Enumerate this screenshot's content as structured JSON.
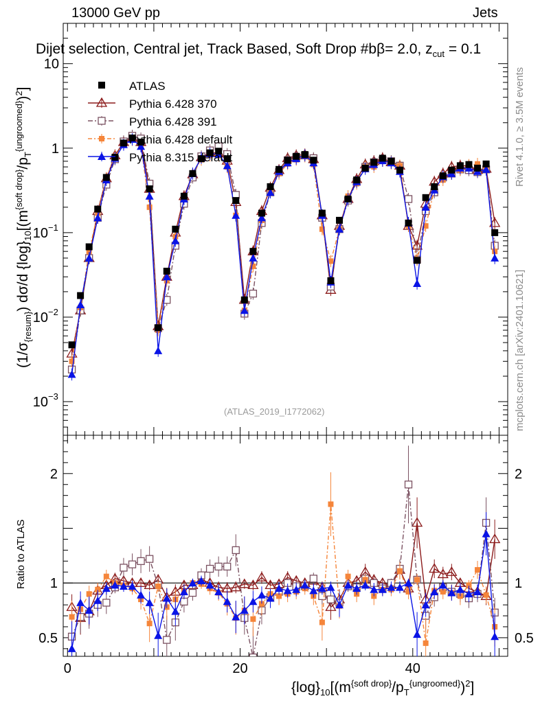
{
  "header": {
    "left": "13000 GeV pp",
    "right": "Jets",
    "selection": "Dijet selection, Central jet, Track Based, Soft Drop #b",
    "beta_text": "= 2.0, z",
    "zcut_sub": "cut",
    "zcut_val": " = 0.1"
  },
  "side_labels": {
    "rivet": "Rivet 4.1.0, ≥ 3.5M events",
    "mcplots": "mcplots.cern.ch [arXiv:2401.10621]"
  },
  "watermark": "(ATLAS_2019_I1772062)",
  "axis_text": {
    "y_main": "(1/σ{resum}) dσ/d {log}10[(m{soft drop}/pT{ungroomed})2]",
    "y_ratio": "Ratio to ATLAS",
    "x": "{log}10[(m{soft drop}/pT{ungroomed})2]"
  },
  "colors": {
    "atlas": "#000000",
    "p370": "#8b1a1a",
    "p391": "#7a5060",
    "pdef": "#f5853a",
    "p8": "#0a14e6"
  },
  "chart_data": {
    "type": "line",
    "title": "Dijet selection, Central jet, Track Based, Soft Drop #b = 2.0, zcut = 0.1",
    "xlabel": "{log}10[(m{soft drop}/pT{ungroomed})2]",
    "ylabel": "(1/σ{resum}) dσ/d {log}10[(m{soft drop}/pT{ungroomed})2]",
    "xlim": [
      -0.5,
      51
    ],
    "ylim_main": [
      0.0004,
      30
    ],
    "yscale_main": "log",
    "ylim_ratio": [
      0.33,
      2.35
    ],
    "x_ticks": [
      0,
      20,
      40
    ],
    "y_ticks_main": [
      {
        "value": 0.001,
        "label": "10",
        "exp": "−3"
      },
      {
        "value": 0.01,
        "label": "10",
        "exp": "−2"
      },
      {
        "value": 0.1,
        "label": "10",
        "exp": "−1"
      },
      {
        "value": 1,
        "label": "1",
        "exp": ""
      },
      {
        "value": 10,
        "label": "10",
        "exp": ""
      }
    ],
    "y_ticks_ratio": [
      0.5,
      1,
      2
    ],
    "legend": [
      {
        "key": "atlas",
        "label": "ATLAS",
        "marker": "square-filled",
        "dash": ""
      },
      {
        "key": "p370",
        "label": "Pythia 6.428 370",
        "marker": "triangle-open",
        "dash": ""
      },
      {
        "key": "p391",
        "label": "Pythia 6.428 391",
        "marker": "square-open",
        "dash": "7,3,2,3"
      },
      {
        "key": "pdef",
        "label": "Pythia 6.428 default",
        "marker": "square-small",
        "dash": "6,3,2,3"
      },
      {
        "key": "p8",
        "label": "Pythia 8.315 default",
        "marker": "triangle-filled",
        "dash": ""
      }
    ],
    "x": [
      0.5,
      1.5,
      2.5,
      3.5,
      4.5,
      5.5,
      6.5,
      7.5,
      8.5,
      9.5,
      10.5,
      11.5,
      12.5,
      13.5,
      14.5,
      15.5,
      16.5,
      17.5,
      18.5,
      19.5,
      20.5,
      21.5,
      22.5,
      23.5,
      24.5,
      25.5,
      26.5,
      27.5,
      28.5,
      29.5,
      30.5,
      31.5,
      32.5,
      33.5,
      34.5,
      35.5,
      36.5,
      37.5,
      38.5,
      39.5,
      40.5,
      41.5,
      42.5,
      43.5,
      44.5,
      45.5,
      46.5,
      47.5,
      48.5,
      49.5
    ],
    "atlas": [
      0.0047,
      0.018,
      0.068,
      0.19,
      0.45,
      0.78,
      1.15,
      1.32,
      1.18,
      0.33,
      0.0075,
      0.035,
      0.11,
      0.27,
      0.5,
      0.75,
      0.88,
      0.92,
      0.75,
      0.24,
      0.016,
      0.06,
      0.17,
      0.35,
      0.56,
      0.72,
      0.8,
      0.84,
      0.72,
      0.17,
      0.027,
      0.14,
      0.25,
      0.42,
      0.58,
      0.68,
      0.76,
      0.7,
      0.55,
      0.13,
      0.047,
      0.26,
      0.35,
      0.47,
      0.55,
      0.62,
      0.64,
      0.58,
      0.65,
      0.1
    ],
    "series": [
      {
        "key": "p370",
        "name": "Pythia 6.428 370",
        "values": [
          0.0037,
          0.012,
          0.05,
          0.18,
          0.44,
          0.82,
          1.18,
          1.32,
          1.18,
          0.33,
          0.0078,
          0.03,
          0.1,
          0.27,
          0.49,
          0.78,
          0.88,
          0.88,
          0.71,
          0.23,
          0.016,
          0.06,
          0.18,
          0.34,
          0.55,
          0.76,
          0.82,
          0.84,
          0.74,
          0.16,
          0.021,
          0.12,
          0.25,
          0.43,
          0.64,
          0.7,
          0.76,
          0.68,
          0.62,
          0.12,
          0.07,
          0.22,
          0.4,
          0.5,
          0.6,
          0.62,
          0.62,
          0.55,
          0.57,
          0.13
        ],
        "ratio": [
          0.78,
          0.68,
          0.74,
          0.93,
          0.98,
          1.04,
          1.02,
          1.0,
          1.0,
          0.98,
          1.03,
          0.87,
          0.92,
          0.98,
          0.98,
          1.03,
          1.0,
          0.96,
          0.95,
          0.96,
          0.99,
          0.98,
          1.05,
          0.98,
          0.99,
          1.05,
          1.02,
          1.0,
          1.02,
          0.96,
          0.78,
          0.85,
          1.0,
          1.02,
          1.1,
          1.03,
          1.0,
          0.98,
          1.12,
          0.95,
          1.55,
          0.85,
          1.13,
          1.08,
          1.1,
          1.0,
          0.95,
          0.92,
          0.88,
          1.4
        ]
      },
      {
        "key": "p391",
        "name": "Pythia 6.428 391",
        "values": [
          0.0024,
          0.012,
          0.05,
          0.15,
          0.37,
          0.74,
          1.2,
          1.4,
          1.3,
          0.38,
          0.0074,
          0.016,
          0.07,
          0.22,
          0.45,
          0.8,
          0.94,
          1.05,
          0.85,
          0.28,
          0.011,
          0.019,
          0.13,
          0.3,
          0.52,
          0.72,
          0.78,
          0.82,
          0.76,
          0.15,
          0.023,
          0.11,
          0.24,
          0.4,
          0.6,
          0.68,
          0.72,
          0.7,
          0.62,
          0.25,
          0.048,
          0.18,
          0.3,
          0.45,
          0.5,
          0.56,
          0.55,
          0.52,
          0.56,
          0.07
        ],
        "ratio": [
          0.51,
          0.69,
          0.72,
          0.8,
          0.82,
          0.96,
          1.14,
          1.17,
          1.2,
          1.22,
          0.98,
          0.48,
          0.64,
          0.83,
          0.91,
          1.07,
          1.13,
          1.15,
          1.15,
          1.3,
          0.68,
          0.32,
          0.75,
          0.87,
          0.92,
          1.0,
          0.97,
          0.97,
          1.04,
          0.88,
          0.85,
          0.82,
          0.97,
          0.96,
          1.04,
          1.0,
          0.95,
          1.0,
          1.13,
          1.9,
          1.03,
          0.7,
          0.87,
          0.96,
          0.92,
          0.9,
          0.86,
          0.9,
          1.55,
          0.73
        ]
      },
      {
        "key": "pdef",
        "name": "Pythia 6.428 default",
        "values": [
          0.003,
          0.013,
          0.06,
          0.17,
          0.44,
          0.8,
          1.12,
          1.25,
          1.08,
          0.2,
          0.007,
          0.027,
          0.09,
          0.25,
          0.5,
          0.73,
          0.82,
          0.82,
          0.6,
          0.16,
          0.012,
          0.04,
          0.14,
          0.31,
          0.5,
          0.65,
          0.73,
          0.8,
          0.64,
          0.11,
          0.046,
          0.11,
          0.27,
          0.38,
          0.6,
          0.6,
          0.71,
          0.66,
          0.62,
          0.12,
          0.048,
          0.12,
          0.32,
          0.42,
          0.5,
          0.55,
          0.63,
          0.65,
          0.57,
          0.06
        ],
        "ratio": [
          0.69,
          0.76,
          0.9,
          0.94,
          1.06,
          1.0,
          0.98,
          0.95,
          0.85,
          0.63,
          0.97,
          0.78,
          0.85,
          0.92,
          1.0,
          0.99,
          0.95,
          0.91,
          0.81,
          0.68,
          0.75,
          0.67,
          0.81,
          0.9,
          0.88,
          0.9,
          0.92,
          0.95,
          0.88,
          0.64,
          1.72,
          0.79,
          1.06,
          0.9,
          1.03,
          0.88,
          0.94,
          0.94,
          1.11,
          0.92,
          1.03,
          0.45,
          0.93,
          0.92,
          0.91,
          0.88,
          0.98,
          1.12,
          0.89,
          0.6
        ]
      },
      {
        "key": "p8",
        "name": "Pythia 8.315 default",
        "values": [
          0.0021,
          0.014,
          0.05,
          0.15,
          0.42,
          0.76,
          1.1,
          1.27,
          1.05,
          0.27,
          0.004,
          0.03,
          0.08,
          0.25,
          0.5,
          0.77,
          0.86,
          0.85,
          0.62,
          0.16,
          0.012,
          0.05,
          0.15,
          0.3,
          0.53,
          0.67,
          0.75,
          0.82,
          0.67,
          0.16,
          0.026,
          0.11,
          0.25,
          0.4,
          0.57,
          0.64,
          0.71,
          0.67,
          0.53,
          0.13,
          0.025,
          0.2,
          0.32,
          0.46,
          0.5,
          0.58,
          0.58,
          0.53,
          0.56,
          0.05
        ],
        "ratio": [
          0.4,
          0.82,
          0.75,
          0.84,
          0.95,
          0.98,
          0.97,
          0.97,
          0.89,
          0.82,
          0.52,
          0.86,
          0.74,
          0.92,
          1.0,
          1.02,
          0.98,
          0.92,
          0.83,
          0.69,
          0.75,
          0.83,
          0.89,
          0.86,
          0.95,
          0.93,
          0.94,
          0.98,
          0.93,
          0.95,
          0.96,
          0.8,
          0.98,
          0.95,
          0.98,
          0.94,
          0.94,
          0.96,
          0.96,
          1.0,
          0.53,
          0.8,
          0.92,
          0.98,
          0.91,
          0.94,
          0.9,
          0.92,
          1.45,
          0.51
        ]
      }
    ]
  }
}
